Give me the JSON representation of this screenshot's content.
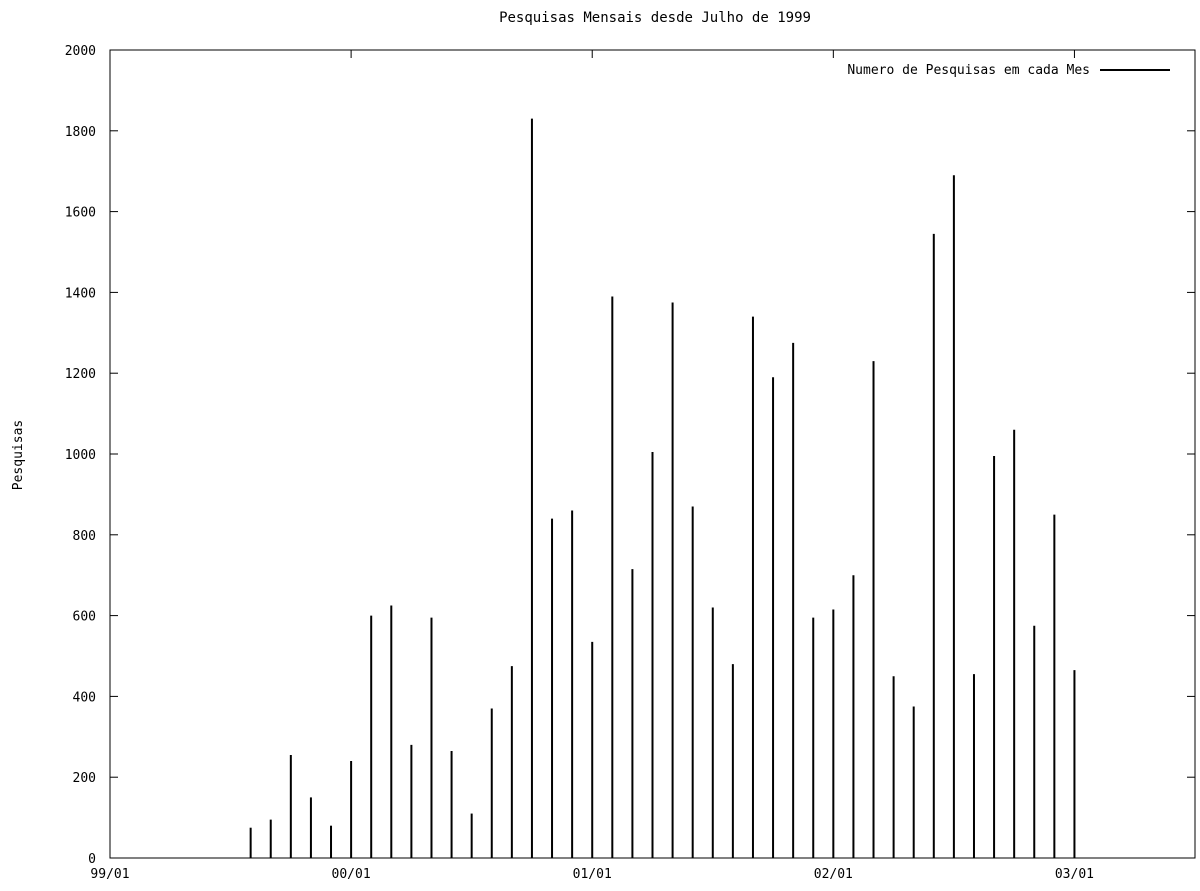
{
  "chart_data": {
    "type": "bar",
    "title": "Pesquisas Mensais desde Julho de 1999",
    "xlabel": "",
    "ylabel": "Pesquisas",
    "legend": {
      "label": "Numero de Pesquisas em cada Mes",
      "position": "top-right"
    },
    "ylim": [
      0,
      2000
    ],
    "yticks": [
      0,
      200,
      400,
      600,
      800,
      1000,
      1200,
      1400,
      1600,
      1800,
      2000
    ],
    "xlim": [
      "1999-01",
      "2003-07"
    ],
    "xticks": [
      "99/01",
      "00/01",
      "01/01",
      "02/01",
      "03/01"
    ],
    "grid": false,
    "series": [
      {
        "name": "Numero de Pesquisas em cada Mes",
        "x": [
          "1999-08",
          "1999-09",
          "1999-10",
          "1999-11",
          "1999-12",
          "2000-01",
          "2000-02",
          "2000-03",
          "2000-04",
          "2000-05",
          "2000-06",
          "2000-07",
          "2000-08",
          "2000-09",
          "2000-10",
          "2000-11",
          "2000-12",
          "2001-01",
          "2001-02",
          "2001-03",
          "2001-04",
          "2001-05",
          "2001-06",
          "2001-07",
          "2001-08",
          "2001-09",
          "2001-10",
          "2001-11",
          "2001-12",
          "2002-01",
          "2002-02",
          "2002-03",
          "2002-04",
          "2002-05",
          "2002-06",
          "2002-07",
          "2002-08",
          "2002-09",
          "2002-10",
          "2002-11",
          "2002-12",
          "2003-01"
        ],
        "values": [
          75,
          95,
          255,
          150,
          80,
          240,
          600,
          625,
          280,
          595,
          265,
          110,
          370,
          475,
          1830,
          840,
          860,
          535,
          1390,
          715,
          1005,
          1375,
          870,
          620,
          480,
          1340,
          1190,
          1275,
          595,
          615,
          700,
          1230,
          450,
          375,
          1545,
          1690,
          455,
          995,
          1060,
          575,
          850,
          465
        ]
      }
    ]
  }
}
